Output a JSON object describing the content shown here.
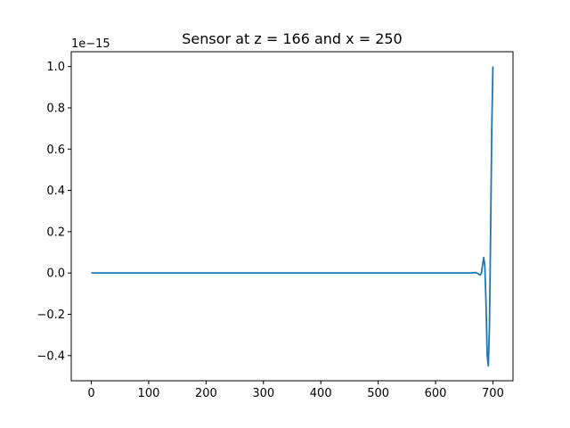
{
  "chart_data": {
    "type": "line",
    "title": "Sensor at z = 166 and x = 250",
    "xlabel": "",
    "ylabel": "",
    "y_offset_label": "1e−15",
    "xlim": [
      -35,
      735
    ],
    "ylim": [
      -0.522,
      1.072
    ],
    "xticks": [
      0,
      100,
      200,
      300,
      400,
      500,
      600,
      700
    ],
    "xtick_labels": [
      "0",
      "100",
      "200",
      "300",
      "400",
      "500",
      "600",
      "700"
    ],
    "yticks": [
      -0.4,
      -0.2,
      0.0,
      0.2,
      0.4,
      0.6,
      0.8,
      1.0
    ],
    "ytick_labels": [
      "−0.4",
      "−0.2",
      "0.0",
      "0.2",
      "0.4",
      "0.6",
      "0.8",
      "1.0"
    ],
    "grid": false,
    "line_color": "#1f77b4",
    "series": [
      {
        "x": [
          0,
          100,
          200,
          300,
          400,
          500,
          600,
          660,
          670,
          674,
          678,
          680,
          682,
          684,
          686,
          688,
          690,
          692,
          694,
          696,
          698,
          700
        ],
        "y": [
          0,
          0,
          0,
          0,
          0,
          0,
          0,
          0,
          0.002,
          -0.003,
          -0.01,
          0.0,
          0.04,
          0.075,
          0.03,
          -0.15,
          -0.4,
          -0.45,
          -0.25,
          0.2,
          0.7,
          1.0
        ]
      }
    ]
  }
}
